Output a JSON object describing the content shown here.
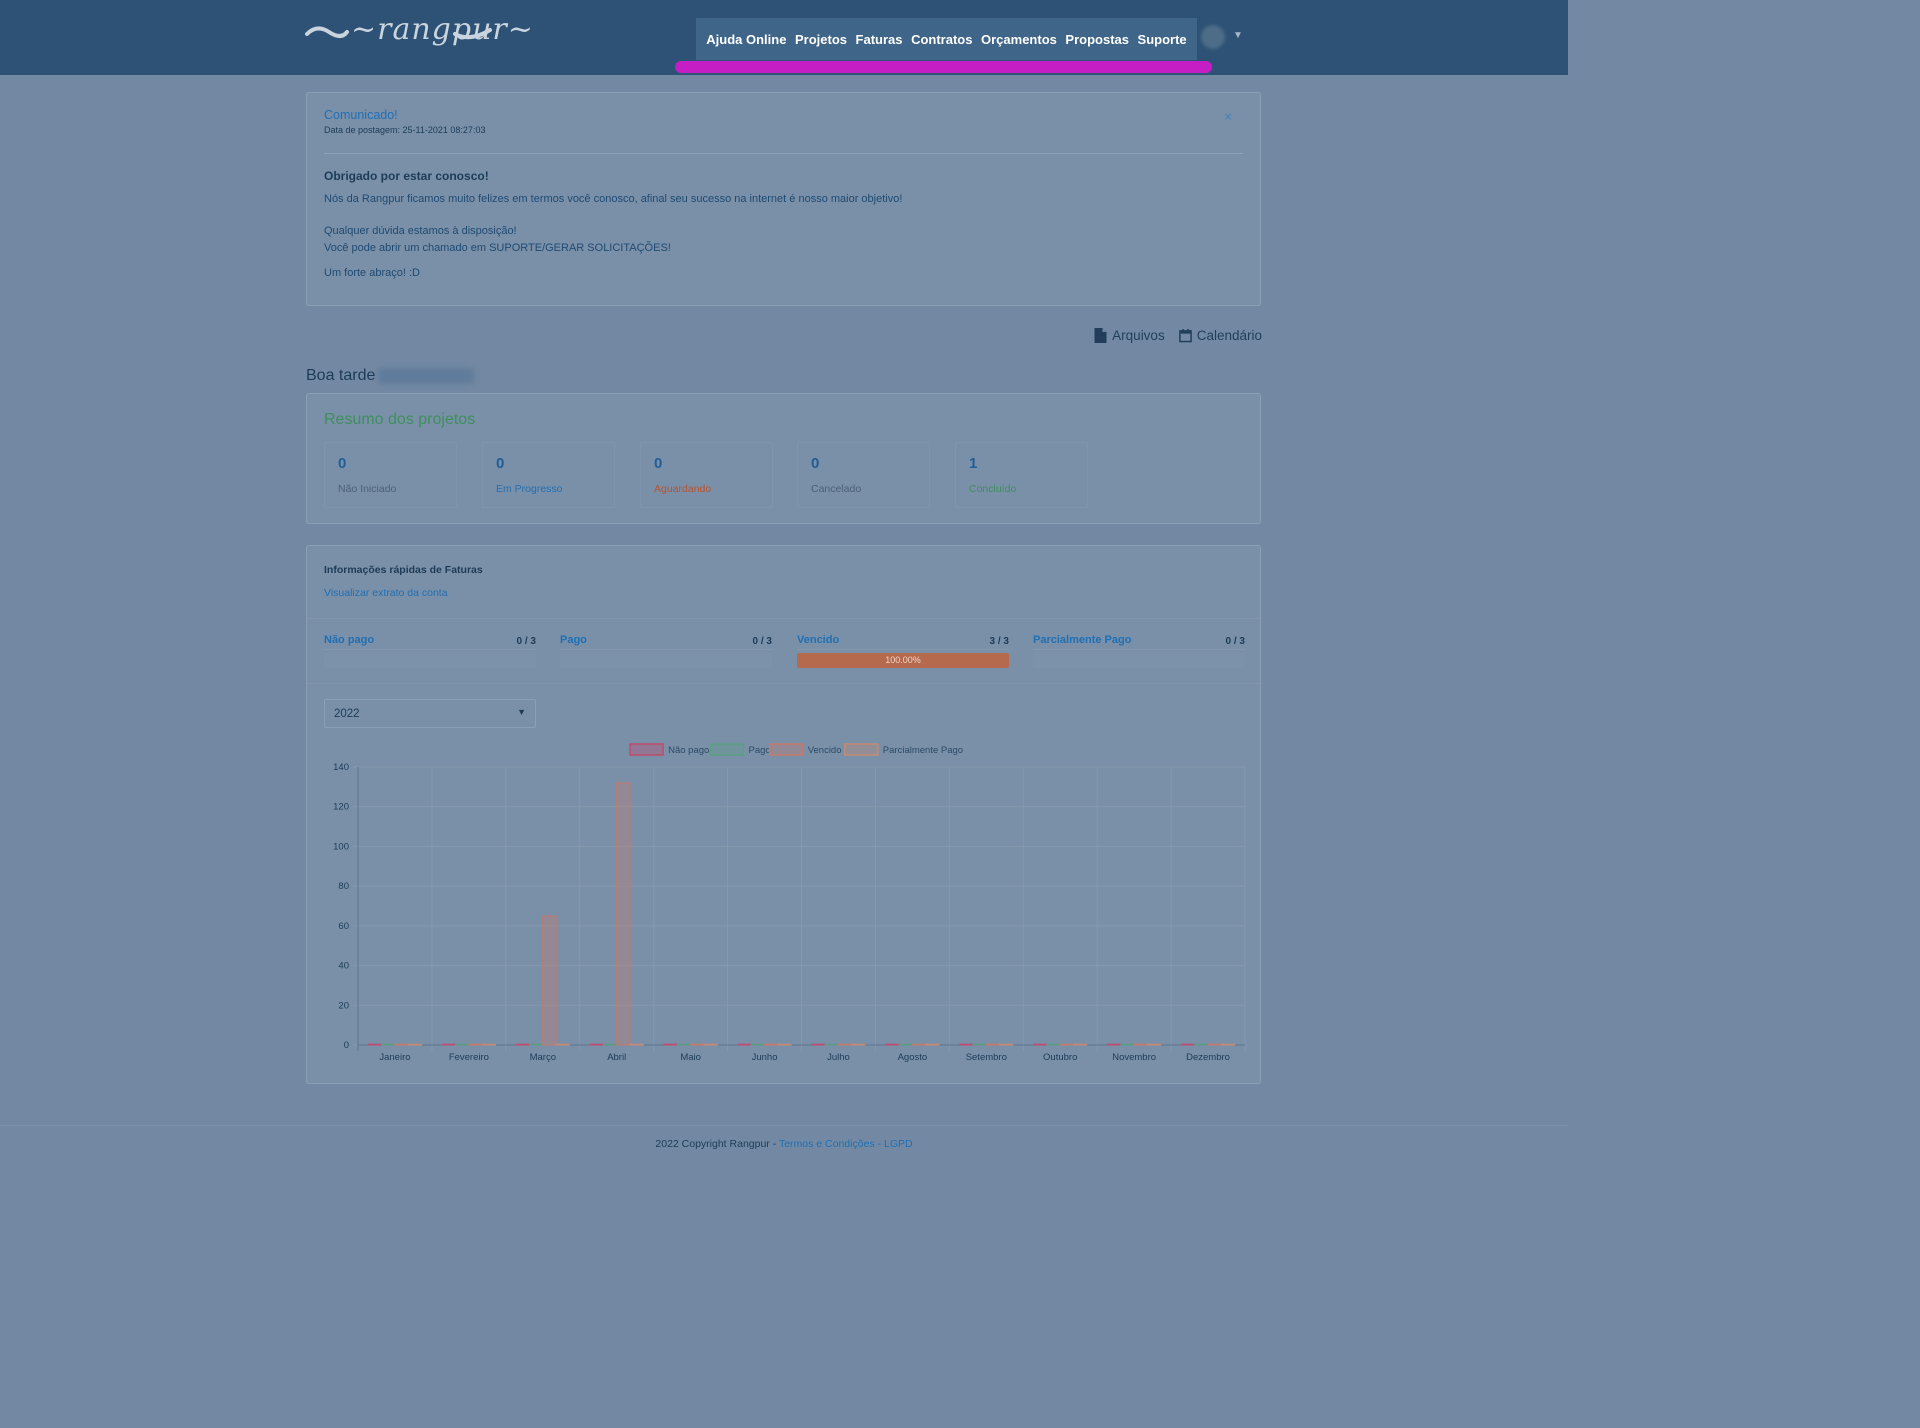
{
  "header": {
    "logo_text": "~rangpur~",
    "nav": [
      "Ajuda Online",
      "Projetos",
      "Faturas",
      "Contratos",
      "Orçamentos",
      "Propostas",
      "Suporte"
    ],
    "highlight_color": "#c41ec4"
  },
  "notice": {
    "title": "Comunicado!",
    "date": "Data de postagem: 25-11-2021 08:27:03",
    "close": "×",
    "heading": "Obrigado por estar conosco!",
    "p1": "Nós da Rangpur ficamos muito felizes em termos você conosco, afinal seu sucesso na internet é nosso maior objetivo!",
    "p2": "Qualquer dúvida estamos à disposição!",
    "p3": "Você pode abrir um chamado em SUPORTE/GERAR SOLICITAÇÕES!",
    "p4": "Um forte abraço! :D"
  },
  "quicklinks": {
    "files": "Arquivos",
    "calendar": "Calendário"
  },
  "greeting": "Boa tarde",
  "projects": {
    "title": "Resumo dos projetos",
    "stats": [
      {
        "value": "0",
        "label": "Não Iniciado",
        "color": "#4c6077"
      },
      {
        "value": "0",
        "label": "Em Progresso",
        "color": "#1f6fb4"
      },
      {
        "value": "0",
        "label": "Aguardando",
        "color": "#b5542f"
      },
      {
        "value": "0",
        "label": "Cancelado",
        "color": "#4c6077"
      },
      {
        "value": "1",
        "label": "Concluído",
        "color": "#3e8f5c"
      }
    ]
  },
  "invoices": {
    "title": "Informações rápidas de Faturas",
    "link": "Visualizar extrato da conta",
    "stats": [
      {
        "label": "Não pago",
        "count": "0 / 3",
        "progress": 0
      },
      {
        "label": "Pago",
        "count": "0 / 3",
        "progress": 0
      },
      {
        "label": "Vencido",
        "count": "3 / 3",
        "progress": 1,
        "progress_text": "100.00%"
      },
      {
        "label": "Parcialmente Pago",
        "count": "0 / 3",
        "progress": 0
      }
    ],
    "year": "2022"
  },
  "chart_data": {
    "type": "bar",
    "categories": [
      "Janeiro",
      "Fevereiro",
      "Março",
      "Abril",
      "Maio",
      "Junho",
      "Julho",
      "Agosto",
      "Setembro",
      "Outubro",
      "Novembro",
      "Dezembro"
    ],
    "series": [
      {
        "name": "Não pago",
        "values": [
          0,
          0,
          0,
          0,
          0,
          0,
          0,
          0,
          0,
          0,
          0,
          0
        ],
        "color": "#c04b6e"
      },
      {
        "name": "Pago",
        "values": [
          0,
          0,
          0,
          0,
          0,
          0,
          0,
          0,
          0,
          0,
          0,
          0
        ],
        "color": "#5b9e82"
      },
      {
        "name": "Vencido",
        "values": [
          0,
          0,
          65,
          132,
          0,
          0,
          0,
          0,
          0,
          0,
          0,
          0
        ],
        "color": "#c47a6a"
      },
      {
        "name": "Parcialmente Pago",
        "values": [
          0,
          0,
          0,
          0,
          0,
          0,
          0,
          0,
          0,
          0,
          0,
          0
        ],
        "color": "#c48a74"
      }
    ],
    "ylim": [
      0,
      140
    ],
    "yticks": [
      0,
      20,
      40,
      60,
      80,
      100,
      120,
      140
    ],
    "legend": "top",
    "grid": true
  },
  "footer": {
    "copyright": "2022 Copyright Rangpur - ",
    "terms": "Termos e Condições",
    "sep": " - ",
    "lgpd": "LGPD"
  }
}
